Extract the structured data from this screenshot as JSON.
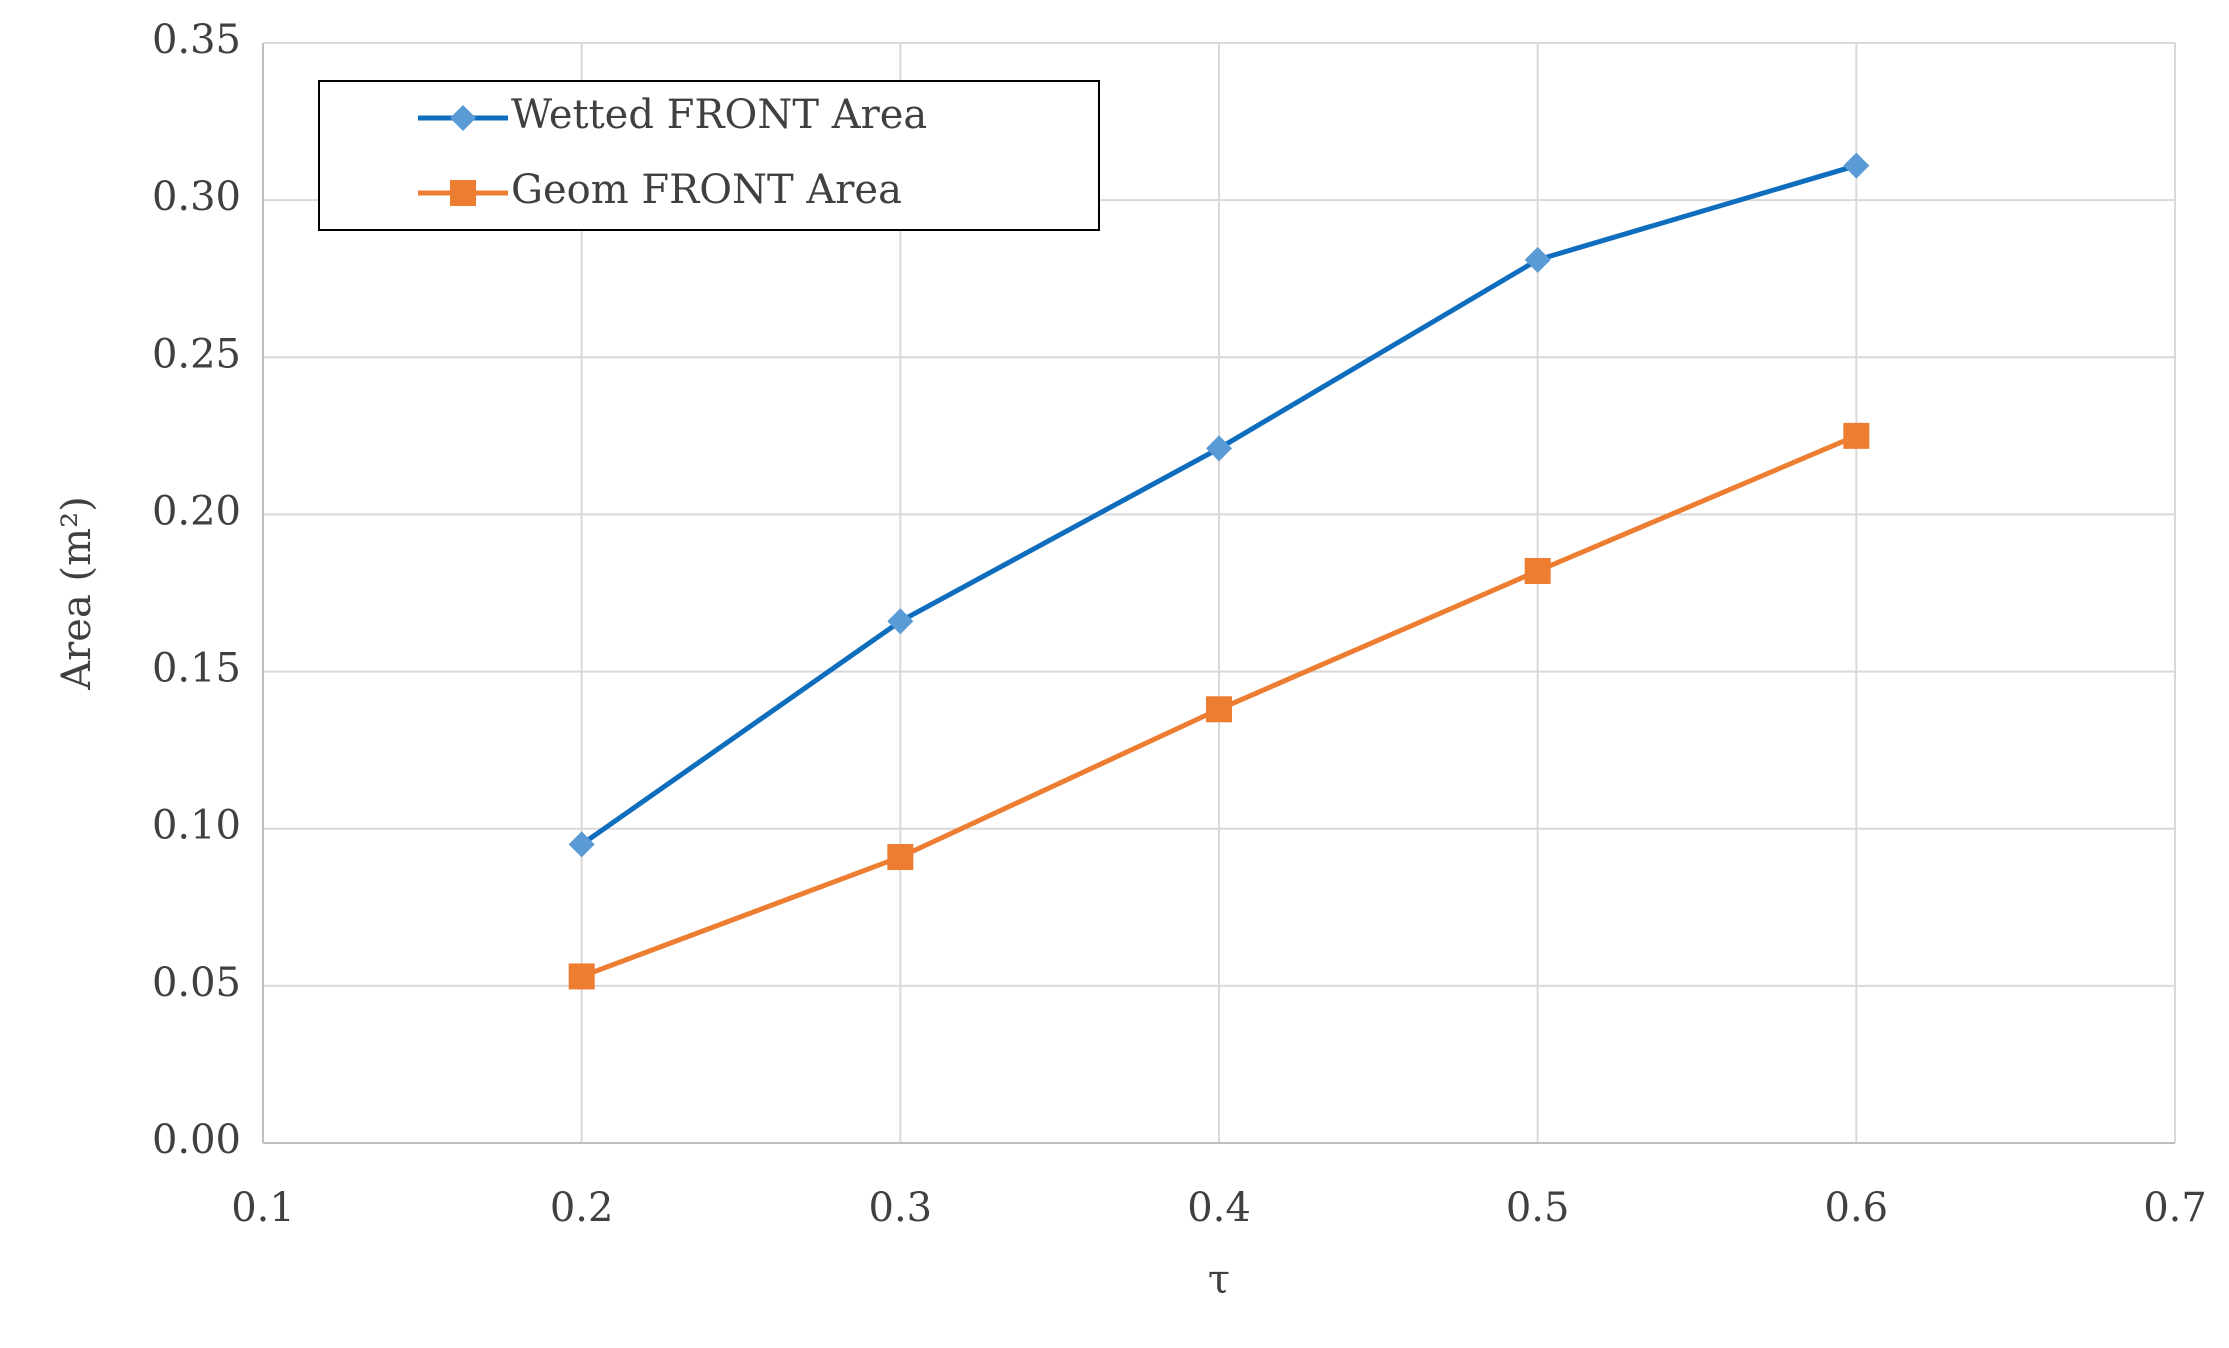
{
  "chart_data": {
    "type": "line",
    "x": [
      0.2,
      0.3,
      0.4,
      0.5,
      0.6
    ],
    "series": [
      {
        "name": "Wetted FRONT Area",
        "color": "#0f6dbd",
        "marker": "diamond",
        "marker_color": "#5b9bd5",
        "values": [
          0.095,
          0.166,
          0.221,
          0.281,
          0.311
        ]
      },
      {
        "name": "Geom FRONT Area",
        "color": "#ed7d31",
        "marker": "square",
        "marker_color": "#ed7d31",
        "values": [
          0.053,
          0.091,
          0.138,
          0.182,
          0.225
        ]
      }
    ],
    "x_label": "τ",
    "y_label": "Area (m²)",
    "xlim": [
      0.1,
      0.7
    ],
    "xticks": [
      0.1,
      0.2,
      0.3,
      0.4,
      0.5,
      0.6,
      0.7
    ],
    "ylim": [
      0,
      0.35
    ],
    "yticks": [
      {
        "value": 0,
        "label": "0.00"
      },
      0.05,
      {
        "value": 0.1,
        "label": "0.10"
      },
      0.15,
      {
        "value": 0.2,
        "label": "0.20"
      },
      0.25,
      {
        "value": 0.3,
        "label": "0.30"
      },
      0.35
    ],
    "grid": true,
    "legend": "upper left"
  }
}
